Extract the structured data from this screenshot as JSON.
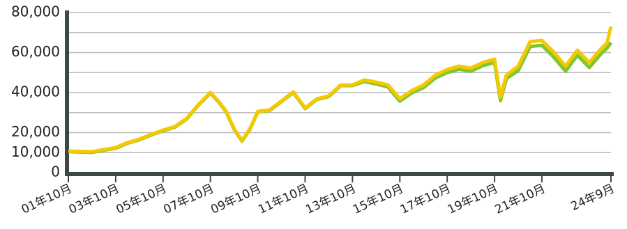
{
  "chart_data": {
    "type": "line",
    "x": [
      0,
      12,
      18,
      24,
      30,
      36,
      42,
      48,
      54,
      60,
      66,
      72,
      76,
      80,
      84,
      88,
      92,
      96,
      102,
      108,
      114,
      120,
      126,
      132,
      138,
      144,
      150,
      156,
      162,
      168,
      174,
      180,
      186,
      192,
      198,
      204,
      210,
      216,
      219,
      222,
      228,
      234,
      240,
      246,
      252,
      258,
      264,
      270,
      273,
      275
    ],
    "series": [
      {
        "color": "#7dc832",
        "values": [
          10500,
          10100,
          11200,
          12200,
          14700,
          16400,
          18800,
          20900,
          22700,
          26800,
          33800,
          39700,
          35500,
          30300,
          21600,
          15700,
          21600,
          30300,
          31000,
          35500,
          40000,
          32000,
          36600,
          38000,
          43500,
          43500,
          45500,
          44300,
          42800,
          35700,
          39800,
          42500,
          47300,
          50000,
          51700,
          50700,
          53400,
          55100,
          36000,
          47000,
          51000,
          63000,
          63600,
          57700,
          50700,
          58700,
          52500,
          59400,
          62200,
          65000
        ]
      },
      {
        "color": "#f5c800",
        "values": [
          10800,
          10400,
          11500,
          12500,
          15000,
          16700,
          19100,
          21200,
          23000,
          27100,
          34100,
          40000,
          35800,
          30600,
          21900,
          16000,
          21900,
          30600,
          31300,
          35800,
          40300,
          32300,
          36900,
          38300,
          43800,
          43800,
          46300,
          45200,
          43800,
          36900,
          41000,
          43800,
          48700,
          51500,
          53200,
          52200,
          55000,
          56700,
          37600,
          48700,
          53200,
          65400,
          66100,
          60200,
          53200,
          61200,
          55000,
          61900,
          64700,
          73000
        ]
      }
    ],
    "xlim": [
      0,
      275
    ],
    "xticks": [
      {
        "value": 0,
        "label": "01年10月"
      },
      {
        "value": 24,
        "label": "03年10月"
      },
      {
        "value": 48,
        "label": "05年10月"
      },
      {
        "value": 72,
        "label": "07年10月"
      },
      {
        "value": 96,
        "label": "09年10月"
      },
      {
        "value": 120,
        "label": "11年10月"
      },
      {
        "value": 144,
        "label": "13年10月"
      },
      {
        "value": 168,
        "label": "15年10月"
      },
      {
        "value": 192,
        "label": "17年10月"
      },
      {
        "value": 216,
        "label": "19年10月"
      },
      {
        "value": 240,
        "label": "21年10月"
      },
      {
        "value": 275,
        "label": "24年9月"
      }
    ],
    "ylim": [
      0,
      80000
    ],
    "yticks": [
      0,
      {
        "value": 10000,
        "label": "10,000"
      },
      {
        "value": 20000,
        "label": "20,000"
      },
      {
        "value": 40000,
        "label": "40,000"
      },
      {
        "value": 60000,
        "label": "60,000"
      },
      {
        "value": 80000,
        "label": "80,000"
      }
    ],
    "yminor": [
      30000,
      50000,
      70000
    ],
    "grid": true
  }
}
